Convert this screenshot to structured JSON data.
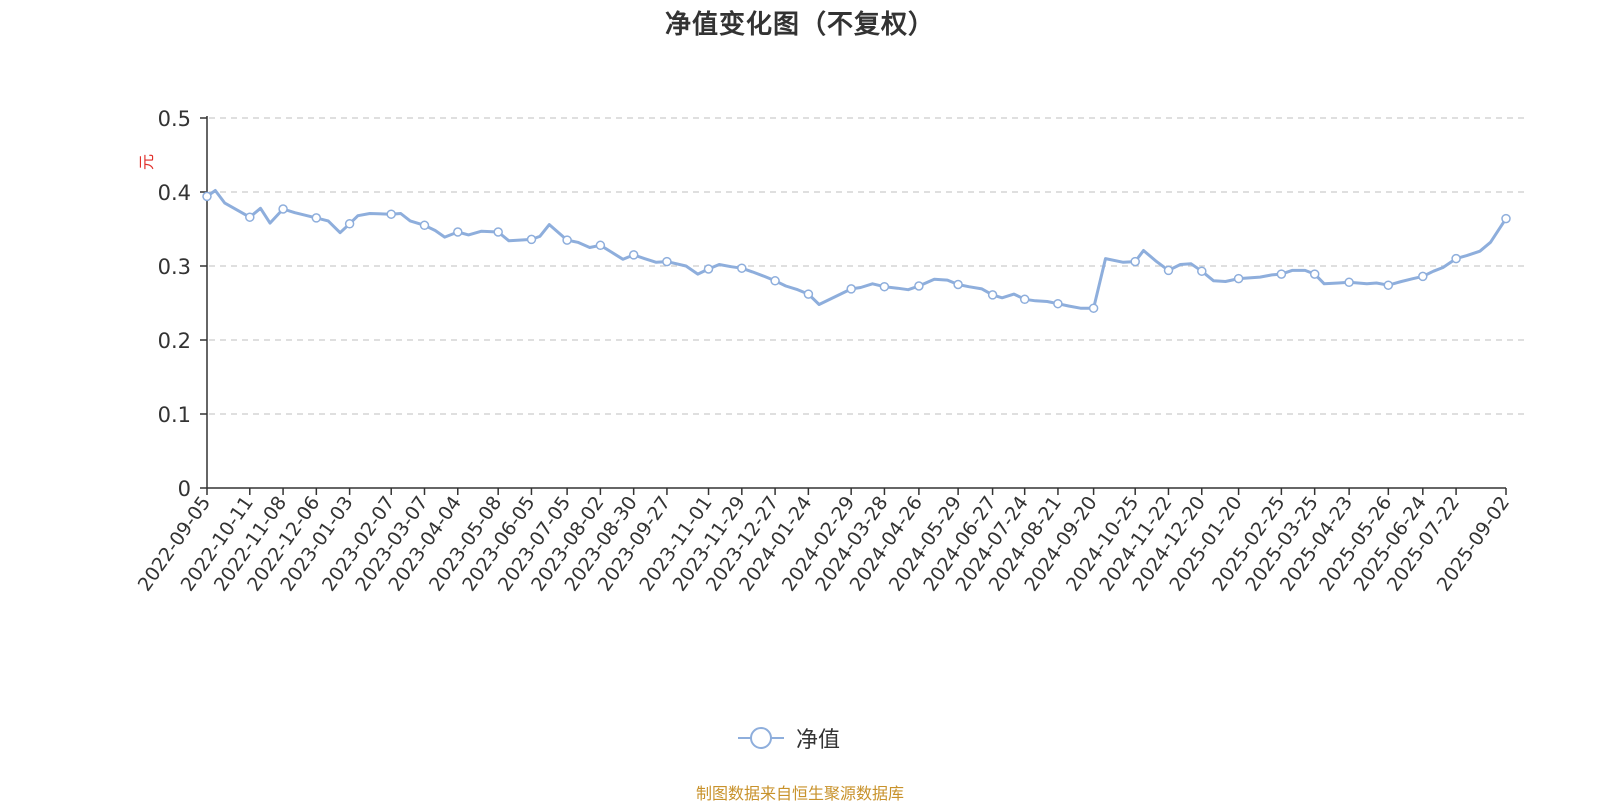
{
  "title": "净值变化图（不复权）",
  "source_note": "制图数据来自恒生聚源数据库",
  "legend": {
    "label": "净值"
  },
  "colors": {
    "line": "#8eaedc",
    "marker_fill": "#ffffff",
    "grid": "#cccccc",
    "axis": "#333333",
    "unit": "#e0302b",
    "source": "#c8922b"
  },
  "chart_data": {
    "type": "line",
    "title": "净值变化图（不复权）",
    "ylabel": "元",
    "ylim": [
      0,
      0.5
    ],
    "y_ticks": [
      "0",
      "0.1",
      "0.2",
      "0.3",
      "0.4",
      "0.5"
    ],
    "grid": true,
    "legend_position": "bottom-center",
    "x_ticks": [
      "2022-09-05",
      "2022-10-11",
      "2022-11-08",
      "2022-12-06",
      "2023-01-03",
      "2023-02-07",
      "2023-03-07",
      "2023-04-04",
      "2023-05-08",
      "2023-06-05",
      "2023-07-05",
      "2023-08-02",
      "2023-08-30",
      "2023-09-27",
      "2023-11-01",
      "2023-11-29",
      "2023-12-27",
      "2024-01-24",
      "2024-02-29",
      "2024-03-28",
      "2024-04-26",
      "2024-05-29",
      "2024-06-27",
      "2024-07-24",
      "2024-08-21",
      "2024-09-20",
      "2024-10-25",
      "2024-11-22",
      "2024-12-20",
      "2025-01-20",
      "2025-02-25",
      "2025-03-25",
      "2025-04-23",
      "2025-05-26",
      "2025-06-24",
      "2025-07-22",
      "2025-09-02"
    ],
    "series": [
      {
        "name": "净值",
        "x": [
          "2022-09-05",
          "2022-09-12",
          "2022-09-20",
          "2022-10-11",
          "2022-10-20",
          "2022-10-28",
          "2022-11-08",
          "2022-11-18",
          "2022-12-06",
          "2022-12-16",
          "2022-12-26",
          "2023-01-03",
          "2023-01-10",
          "2023-01-20",
          "2023-02-07",
          "2023-02-15",
          "2023-02-23",
          "2023-03-07",
          "2023-03-16",
          "2023-03-24",
          "2023-04-04",
          "2023-04-13",
          "2023-04-24",
          "2023-05-08",
          "2023-05-17",
          "2023-05-26",
          "2023-06-05",
          "2023-06-12",
          "2023-06-20",
          "2023-07-05",
          "2023-07-14",
          "2023-07-24",
          "2023-08-02",
          "2023-08-11",
          "2023-08-21",
          "2023-08-30",
          "2023-09-08",
          "2023-09-18",
          "2023-09-27",
          "2023-10-13",
          "2023-10-23",
          "2023-11-01",
          "2023-11-10",
          "2023-11-20",
          "2023-11-29",
          "2023-12-08",
          "2023-12-18",
          "2023-12-27",
          "2024-01-05",
          "2024-01-15",
          "2024-01-24",
          "2024-02-02",
          "2024-02-20",
          "2024-02-29",
          "2024-03-08",
          "2024-03-18",
          "2024-03-28",
          "2024-04-08",
          "2024-04-17",
          "2024-04-26",
          "2024-05-09",
          "2024-05-20",
          "2024-05-29",
          "2024-06-07",
          "2024-06-18",
          "2024-06-27",
          "2024-07-05",
          "2024-07-15",
          "2024-07-24",
          "2024-08-02",
          "2024-08-12",
          "2024-08-21",
          "2024-08-30",
          "2024-09-09",
          "2024-09-20",
          "2024-09-30",
          "2024-10-15",
          "2024-10-25",
          "2024-11-01",
          "2024-11-12",
          "2024-11-22",
          "2024-12-02",
          "2024-12-11",
          "2024-12-20",
          "2024-12-30",
          "2025-01-09",
          "2025-01-20",
          "2025-02-07",
          "2025-02-17",
          "2025-02-25",
          "2025-03-06",
          "2025-03-17",
          "2025-03-25",
          "2025-04-02",
          "2025-04-14",
          "2025-04-23",
          "2025-05-08",
          "2025-05-16",
          "2025-05-26",
          "2025-06-06",
          "2025-06-16",
          "2025-06-24",
          "2025-07-03",
          "2025-07-11",
          "2025-07-22",
          "2025-07-31",
          "2025-08-11",
          "2025-08-20",
          "2025-09-02"
        ],
        "values": [
          0.394,
          0.402,
          0.385,
          0.366,
          0.378,
          0.358,
          0.377,
          0.372,
          0.365,
          0.361,
          0.345,
          0.357,
          0.368,
          0.371,
          0.37,
          0.371,
          0.361,
          0.355,
          0.348,
          0.339,
          0.346,
          0.342,
          0.347,
          0.346,
          0.334,
          0.335,
          0.336,
          0.34,
          0.356,
          0.335,
          0.332,
          0.325,
          0.328,
          0.319,
          0.309,
          0.315,
          0.31,
          0.305,
          0.306,
          0.3,
          0.289,
          0.296,
          0.302,
          0.299,
          0.297,
          0.292,
          0.286,
          0.28,
          0.273,
          0.268,
          0.262,
          0.248,
          0.262,
          0.269,
          0.271,
          0.276,
          0.272,
          0.27,
          0.268,
          0.273,
          0.282,
          0.281,
          0.275,
          0.272,
          0.269,
          0.261,
          0.257,
          0.262,
          0.255,
          0.253,
          0.252,
          0.249,
          0.246,
          0.243,
          0.243,
          0.31,
          0.305,
          0.306,
          0.321,
          0.306,
          0.294,
          0.302,
          0.303,
          0.293,
          0.28,
          0.279,
          0.283,
          0.285,
          0.288,
          0.289,
          0.294,
          0.294,
          0.289,
          0.276,
          0.277,
          0.278,
          0.276,
          0.277,
          0.274,
          0.279,
          0.283,
          0.286,
          0.293,
          0.298,
          0.31,
          0.314,
          0.32,
          0.332,
          0.364
        ]
      }
    ]
  }
}
